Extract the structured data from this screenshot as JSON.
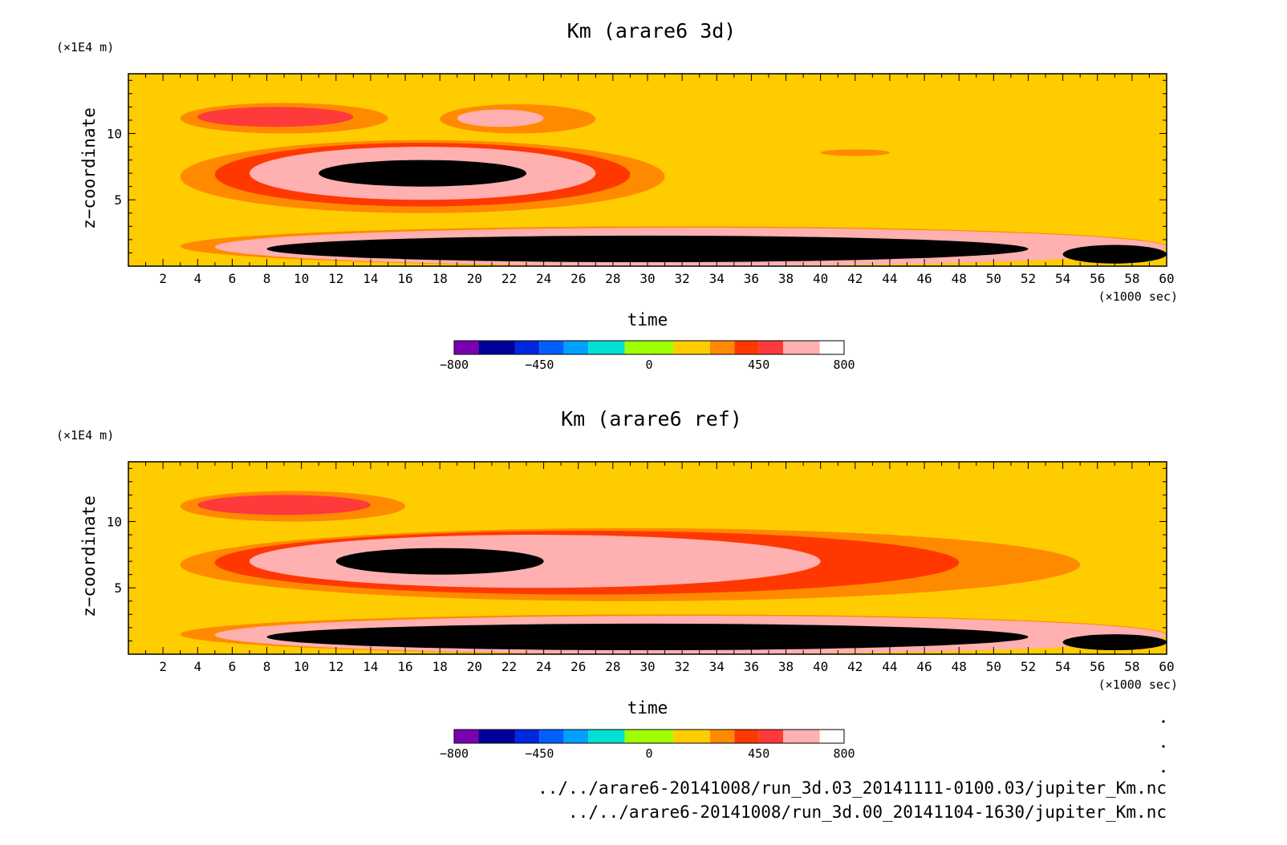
{
  "chart_data": [
    {
      "type": "heatmap",
      "title": "Km (arare6 3d)",
      "xlabel": "time",
      "x_unit": "(×1000 sec)",
      "ylabel": "z−coordinate",
      "y_unit": "(×1E4 m)",
      "xlim": [
        0,
        60
      ],
      "ylim": [
        0,
        14.5
      ],
      "xticks": [
        2,
        4,
        6,
        8,
        10,
        12,
        14,
        16,
        18,
        20,
        22,
        24,
        26,
        28,
        30,
        32,
        34,
        36,
        38,
        40,
        42,
        44,
        46,
        48,
        50,
        52,
        54,
        56,
        58,
        60
      ],
      "yticks": [
        5,
        10
      ],
      "background_value": 100,
      "regions": [
        {
          "level": 250,
          "x": [
            3,
            60
          ],
          "y": [
            0,
            3
          ]
        },
        {
          "level": 550,
          "x": [
            5,
            60
          ],
          "y": [
            0,
            2.9
          ]
        },
        {
          "level": 750,
          "x": [
            8,
            52
          ],
          "y": [
            0.3,
            2.3
          ]
        },
        {
          "level": 750,
          "x": [
            54,
            60
          ],
          "y": [
            0.2,
            1.6
          ]
        },
        {
          "level": 250,
          "x": [
            3,
            31
          ],
          "y": [
            4,
            9.5
          ]
        },
        {
          "level": 350,
          "x": [
            5,
            29
          ],
          "y": [
            4.5,
            9.3
          ]
        },
        {
          "level": 550,
          "x": [
            7,
            27
          ],
          "y": [
            5,
            9
          ]
        },
        {
          "level": 750,
          "x": [
            11,
            23
          ],
          "y": [
            6,
            8
          ]
        },
        {
          "level": 250,
          "x": [
            3,
            15
          ],
          "y": [
            10,
            12.3
          ]
        },
        {
          "level": 450,
          "x": [
            4,
            13
          ],
          "y": [
            10.5,
            12
          ]
        },
        {
          "level": 250,
          "x": [
            18,
            27
          ],
          "y": [
            10,
            12.2
          ]
        },
        {
          "level": 550,
          "x": [
            19,
            24
          ],
          "y": [
            10.5,
            11.8
          ]
        },
        {
          "level": 250,
          "x": [
            40,
            44
          ],
          "y": [
            8.3,
            8.8
          ]
        }
      ]
    },
    {
      "type": "heatmap",
      "title": "Km (arare6 ref)",
      "xlabel": "time",
      "x_unit": "(×1000 sec)",
      "ylabel": "z−coordinate",
      "y_unit": "(×1E4 m)",
      "xlim": [
        0,
        60
      ],
      "ylim": [
        0,
        14.5
      ],
      "xticks": [
        2,
        4,
        6,
        8,
        10,
        12,
        14,
        16,
        18,
        20,
        22,
        24,
        26,
        28,
        30,
        32,
        34,
        36,
        38,
        40,
        42,
        44,
        46,
        48,
        50,
        52,
        54,
        56,
        58,
        60
      ],
      "yticks": [
        5,
        10
      ],
      "background_value": 100,
      "regions": [
        {
          "level": 250,
          "x": [
            3,
            60
          ],
          "y": [
            0,
            3
          ]
        },
        {
          "level": 550,
          "x": [
            5,
            60
          ],
          "y": [
            0,
            2.9
          ]
        },
        {
          "level": 750,
          "x": [
            8,
            52
          ],
          "y": [
            0.3,
            2.3
          ]
        },
        {
          "level": 750,
          "x": [
            54,
            60
          ],
          "y": [
            0.3,
            1.5
          ]
        },
        {
          "level": 250,
          "x": [
            3,
            55
          ],
          "y": [
            4,
            9.5
          ]
        },
        {
          "level": 350,
          "x": [
            5,
            48
          ],
          "y": [
            4.5,
            9.3
          ]
        },
        {
          "level": 550,
          "x": [
            7,
            40
          ],
          "y": [
            5,
            9
          ]
        },
        {
          "level": 750,
          "x": [
            12,
            24
          ],
          "y": [
            6,
            8
          ]
        },
        {
          "level": 250,
          "x": [
            3,
            16
          ],
          "y": [
            10,
            12.3
          ]
        },
        {
          "level": 450,
          "x": [
            4,
            14
          ],
          "y": [
            10.5,
            12
          ]
        }
      ]
    }
  ],
  "colorbar": {
    "levels": [
      -800,
      -700,
      -550,
      -450,
      -350,
      -250,
      -100,
      100,
      250,
      350,
      450,
      550,
      700,
      800
    ],
    "colors": [
      "#7a00b0",
      "#00009a",
      "#0028e0",
      "#0060ff",
      "#00a0ff",
      "#00e0d0",
      "#a0ff00",
      "#ffcc00",
      "#ff8a00",
      "#ff3800",
      "#ff3a3a",
      "#ffb0b0"
    ],
    "tick_labels": [
      "−800",
      "−450",
      "0",
      "450",
      "800"
    ],
    "tick_values": [
      -800,
      -450,
      0,
      450,
      800
    ]
  },
  "footnotes": [
    "../../arare6-20141008/run_3d.03_20141111-0100.03/jupiter_Km.nc",
    "../../arare6-20141008/run_3d.00_20141104-1630/jupiter_Km.nc"
  ]
}
